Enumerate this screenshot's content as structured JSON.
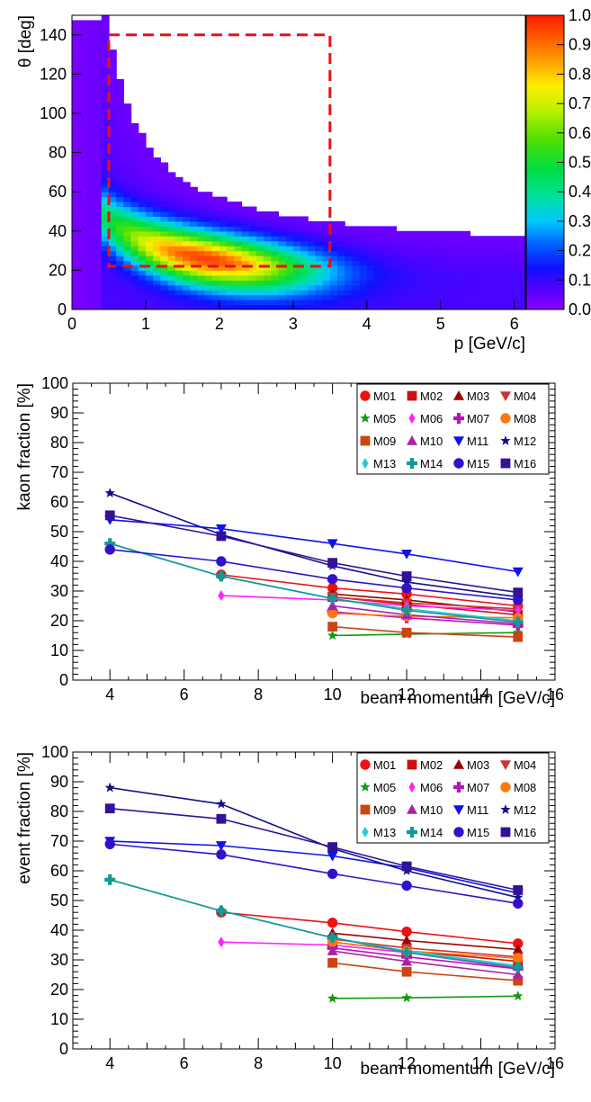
{
  "chart_data": [
    {
      "type": "heatmap",
      "xlabel": "p [GeV/c]",
      "ylabel": "θ [deg]",
      "xlim": [
        0,
        6.15
      ],
      "ylim": [
        0,
        150
      ],
      "x_ticks": [
        "0",
        "1",
        "2",
        "3",
        "4",
        "5",
        "6"
      ],
      "y_ticks": [
        "0",
        "20",
        "40",
        "60",
        "80",
        "100",
        "120",
        "140"
      ],
      "colorbar": {
        "range": [
          0,
          1
        ],
        "ticks": [
          "0.0",
          "0.1",
          "0.2",
          "0.3",
          "0.4",
          "0.5",
          "0.6",
          "0.7",
          "0.8",
          "0.9",
          "1.0"
        ]
      },
      "selection_box": {
        "p": [
          0.5,
          3.5
        ],
        "theta": [
          22,
          140
        ],
        "color": "#e8101b",
        "style": "dashed"
      }
    },
    {
      "type": "line",
      "xlabel": "beam momentum [GeV/c]",
      "ylabel": "kaon fraction [%]",
      "xlim": [
        3,
        16
      ],
      "ylim": [
        0,
        100
      ],
      "x_ticks": [
        "4",
        "6",
        "8",
        "10",
        "12",
        "14",
        "16"
      ],
      "y_ticks": [
        "0",
        "10",
        "20",
        "30",
        "40",
        "50",
        "60",
        "70",
        "80",
        "90",
        "100"
      ],
      "legend_position": "top-right",
      "series": [
        {
          "name": "M01",
          "marker": "circle",
          "color": "#ee1111",
          "x": [
            7,
            10,
            12,
            15
          ],
          "y": [
            35.5,
            31,
            29,
            25
          ]
        },
        {
          "name": "M02",
          "marker": "square",
          "color": "#cc1111",
          "x": [
            10,
            12,
            15
          ],
          "y": [
            28,
            25.5,
            22
          ]
        },
        {
          "name": "M03",
          "marker": "triangle-up",
          "color": "#990000",
          "x": [
            10,
            12,
            15
          ],
          "y": [
            29,
            27,
            23
          ]
        },
        {
          "name": "M04",
          "marker": "triangle-down",
          "color": "#cc3333",
          "x": [
            10,
            12,
            15
          ],
          "y": [
            28,
            26,
            24
          ]
        },
        {
          "name": "M05",
          "marker": "star",
          "color": "#119911",
          "x": [
            10,
            12,
            15
          ],
          "y": [
            15,
            15.5,
            16
          ]
        },
        {
          "name": "M06",
          "marker": "diamond",
          "color": "#ff22ff",
          "x": [
            7,
            10,
            12,
            15
          ],
          "y": [
            28.5,
            27,
            25,
            23.5
          ]
        },
        {
          "name": "M07",
          "marker": "cross",
          "color": "#bb11bb",
          "x": [
            10,
            12,
            15
          ],
          "y": [
            23,
            21,
            18.5
          ]
        },
        {
          "name": "M08",
          "marker": "circle",
          "color": "#ff7711",
          "x": [
            10,
            12,
            15
          ],
          "y": [
            22.5,
            21.5,
            21
          ]
        },
        {
          "name": "M09",
          "marker": "square",
          "color": "#cc4411",
          "x": [
            10,
            12,
            15
          ],
          "y": [
            18,
            16,
            14.5
          ]
        },
        {
          "name": "M10",
          "marker": "triangle-up",
          "color": "#aa22aa",
          "x": [
            10,
            12,
            15
          ],
          "y": [
            25,
            22,
            19
          ]
        },
        {
          "name": "M11",
          "marker": "triangle-down",
          "color": "#1111ee",
          "x": [
            4,
            7,
            10,
            12,
            15
          ],
          "y": [
            54,
            51,
            46,
            42.5,
            36.5
          ]
        },
        {
          "name": "M12",
          "marker": "star",
          "color": "#111188",
          "x": [
            4,
            7,
            10,
            12,
            15
          ],
          "y": [
            63,
            49,
            38.5,
            33,
            28
          ]
        },
        {
          "name": "M13",
          "marker": "diamond",
          "color": "#22cccc",
          "x": [
            4,
            7,
            10,
            12,
            15
          ],
          "y": [
            46,
            35,
            27.5,
            24,
            20
          ]
        },
        {
          "name": "M14",
          "marker": "cross",
          "color": "#119999",
          "x": [
            4,
            7,
            10,
            12,
            15
          ],
          "y": [
            46,
            35,
            27.5,
            23.5,
            19.5
          ]
        },
        {
          "name": "M15",
          "marker": "circle",
          "color": "#3311cc",
          "x": [
            4,
            7,
            10,
            12,
            15
          ],
          "y": [
            44,
            40,
            34,
            31,
            27
          ]
        },
        {
          "name": "M16",
          "marker": "square",
          "color": "#331199",
          "x": [
            4,
            7,
            10,
            12,
            15
          ],
          "y": [
            55.5,
            48.5,
            39.5,
            35,
            29.5
          ]
        }
      ]
    },
    {
      "type": "line",
      "xlabel": "beam momentum [GeV/c]",
      "ylabel": "event fraction [%]",
      "xlim": [
        3,
        16
      ],
      "ylim": [
        0,
        100
      ],
      "x_ticks": [
        "4",
        "6",
        "8",
        "10",
        "12",
        "14",
        "16"
      ],
      "y_ticks": [
        "0",
        "10",
        "20",
        "30",
        "40",
        "50",
        "60",
        "70",
        "80",
        "90",
        "100"
      ],
      "legend_position": "top-right",
      "series": [
        {
          "name": "M01",
          "marker": "circle",
          "color": "#ee1111",
          "x": [
            7,
            10,
            12,
            15
          ],
          "y": [
            46,
            42.5,
            39.5,
            35.5
          ]
        },
        {
          "name": "M02",
          "marker": "square",
          "color": "#cc1111",
          "x": [
            10,
            12,
            15
          ],
          "y": [
            36,
            33,
            29.5
          ]
        },
        {
          "name": "M03",
          "marker": "triangle-up",
          "color": "#990000",
          "x": [
            10,
            12,
            15
          ],
          "y": [
            39,
            36.5,
            33.5
          ]
        },
        {
          "name": "M04",
          "marker": "triangle-down",
          "color": "#cc3333",
          "x": [
            10,
            12,
            15
          ],
          "y": [
            37,
            34,
            31
          ]
        },
        {
          "name": "M05",
          "marker": "star",
          "color": "#119911",
          "x": [
            10,
            12,
            15
          ],
          "y": [
            17,
            17.2,
            17.8
          ]
        },
        {
          "name": "M06",
          "marker": "diamond",
          "color": "#ff22ff",
          "x": [
            7,
            10,
            12,
            15
          ],
          "y": [
            36,
            35,
            32.5,
            27
          ]
        },
        {
          "name": "M07",
          "marker": "cross",
          "color": "#bb11bb",
          "x": [
            10,
            12,
            15
          ],
          "y": [
            34,
            31,
            27
          ]
        },
        {
          "name": "M08",
          "marker": "circle",
          "color": "#ff7711",
          "x": [
            10,
            12,
            15
          ],
          "y": [
            36,
            33,
            30.5
          ]
        },
        {
          "name": "M09",
          "marker": "square",
          "color": "#cc4411",
          "x": [
            10,
            12,
            15
          ],
          "y": [
            29,
            26,
            23
          ]
        },
        {
          "name": "M10",
          "marker": "triangle-up",
          "color": "#aa22aa",
          "x": [
            10,
            12,
            15
          ],
          "y": [
            33,
            29.5,
            25
          ]
        },
        {
          "name": "M11",
          "marker": "triangle-down",
          "color": "#1111ee",
          "x": [
            4,
            7,
            10,
            12,
            15
          ],
          "y": [
            70,
            68.5,
            65,
            61,
            52.5
          ]
        },
        {
          "name": "M12",
          "marker": "star",
          "color": "#111188",
          "x": [
            4,
            7,
            10,
            12,
            15
          ],
          "y": [
            88,
            82.5,
            67.5,
            60,
            51
          ]
        },
        {
          "name": "M13",
          "marker": "diamond",
          "color": "#22cccc",
          "x": [
            4,
            7,
            10,
            12,
            15
          ],
          "y": [
            57,
            46.5,
            37.5,
            33,
            28
          ]
        },
        {
          "name": "M14",
          "marker": "cross",
          "color": "#119999",
          "x": [
            4,
            7,
            10,
            12,
            15
          ],
          "y": [
            57,
            46.5,
            37.5,
            32.5,
            27.5
          ]
        },
        {
          "name": "M15",
          "marker": "circle",
          "color": "#3311cc",
          "x": [
            4,
            7,
            10,
            12,
            15
          ],
          "y": [
            69,
            65.5,
            59,
            55,
            49
          ]
        },
        {
          "name": "M16",
          "marker": "square",
          "color": "#331199",
          "x": [
            4,
            7,
            10,
            12,
            15
          ],
          "y": [
            81,
            77.5,
            68,
            61.5,
            53.5
          ]
        }
      ]
    }
  ]
}
